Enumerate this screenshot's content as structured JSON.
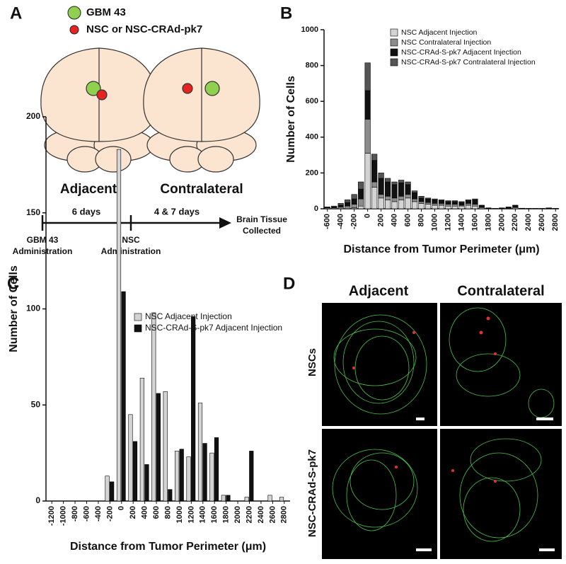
{
  "panel_labels": [
    "A",
    "B",
    "C",
    "D"
  ],
  "panel_a": {
    "legend": [
      "GBM 43",
      "NSC or NSC-CRAd-pk7"
    ],
    "brain_labels": [
      "Adjacent",
      "Contralateral"
    ],
    "timeline": {
      "intervals": [
        "6 days",
        "4 & 7 days"
      ],
      "events": [
        [
          "GBM 43",
          "Administration"
        ],
        [
          "NSC",
          "Administration"
        ],
        [
          "Brain Tissue",
          "Collected"
        ]
      ]
    }
  },
  "panel_d": {
    "columns": [
      "Adjacent",
      "Contralateral"
    ],
    "rows": [
      "NSCs",
      "NSC-CRAd-S-pk7"
    ]
  },
  "chart_data": [
    {
      "type": "bar",
      "stacked": true,
      "x_label": "Distance from Tumor Perimeter (μm)",
      "y_label": "Number of Cells",
      "categories": [
        -600,
        null,
        -400,
        null,
        -200,
        null,
        0,
        null,
        200,
        null,
        400,
        null,
        600,
        null,
        800,
        null,
        1000,
        null,
        1200,
        null,
        1400,
        null,
        1600,
        null,
        1800,
        null,
        2000,
        null,
        2200,
        null,
        2400,
        null,
        2600,
        null,
        2800
      ],
      "ylim": [
        0,
        1000
      ],
      "yticks": [
        0,
        200,
        400,
        600,
        800,
        1000
      ],
      "series": [
        {
          "name": "NSC Adjacent Injection",
          "color": "#d4d4d4",
          "values": [
            0,
            0,
            0,
            0,
            5,
            15,
            310,
            120,
            60,
            50,
            40,
            50,
            60,
            40,
            30,
            25,
            20,
            20,
            15,
            15,
            15,
            20,
            15,
            5,
            2,
            0,
            0,
            2,
            5,
            0,
            0,
            0,
            0,
            2,
            0
          ]
        },
        {
          "name": "NSC Contralateral Injection",
          "color": "#8c8c8c",
          "values": [
            5,
            5,
            10,
            15,
            20,
            40,
            190,
            30,
            20,
            20,
            20,
            20,
            20,
            15,
            10,
            10,
            10,
            10,
            10,
            10,
            5,
            10,
            10,
            5,
            0,
            0,
            2,
            3,
            5,
            1,
            1,
            1,
            1,
            1,
            1
          ]
        },
        {
          "name": "NSC-CRAd-S-pk7 Adjacent Injection",
          "color": "#111111",
          "values": [
            3,
            5,
            10,
            20,
            30,
            55,
            160,
            120,
            90,
            80,
            75,
            75,
            55,
            35,
            20,
            20,
            20,
            15,
            15,
            15,
            15,
            15,
            25,
            8,
            2,
            2,
            2,
            3,
            8,
            1,
            1,
            1,
            1,
            1,
            1
          ]
        },
        {
          "name": "NSC-CRAd-S-pk7 Contralateral Injection",
          "color": "#555555",
          "values": [
            2,
            5,
            10,
            15,
            25,
            40,
            155,
            35,
            30,
            20,
            15,
            15,
            15,
            10,
            10,
            5,
            5,
            5,
            5,
            5,
            5,
            5,
            5,
            2,
            1,
            0,
            1,
            2,
            2,
            1,
            0,
            0,
            0,
            1,
            0
          ]
        }
      ]
    },
    {
      "type": "bar",
      "stacked": false,
      "x_label": "Distance from Tumor Perimeter (μm)",
      "y_label": "Number of Cells",
      "categories": [
        -1200,
        -1000,
        -800,
        -600,
        -400,
        -200,
        0,
        200,
        400,
        600,
        800,
        1000,
        1200,
        1400,
        1600,
        1800,
        2000,
        2200,
        2400,
        2600,
        2800
      ],
      "ylim": [
        0,
        200
      ],
      "yticks": [
        0,
        50,
        100,
        150,
        200
      ],
      "series": [
        {
          "name": "NSC Adjacent Injection",
          "color": "#d4d4d4",
          "values": [
            0,
            0,
            0,
            0,
            0,
            13,
            183,
            45,
            64,
            98,
            57,
            26,
            23,
            51,
            25,
            3,
            0,
            2,
            0,
            3,
            2
          ]
        },
        {
          "name": "NSC-CRAd-S-pk7 Adjacent Injection",
          "color": "#111111",
          "values": [
            0,
            0,
            0,
            0,
            0,
            10,
            109,
            31,
            19,
            56,
            6,
            27,
            96,
            30,
            33,
            3,
            0,
            26,
            0,
            0,
            0
          ]
        }
      ]
    }
  ]
}
